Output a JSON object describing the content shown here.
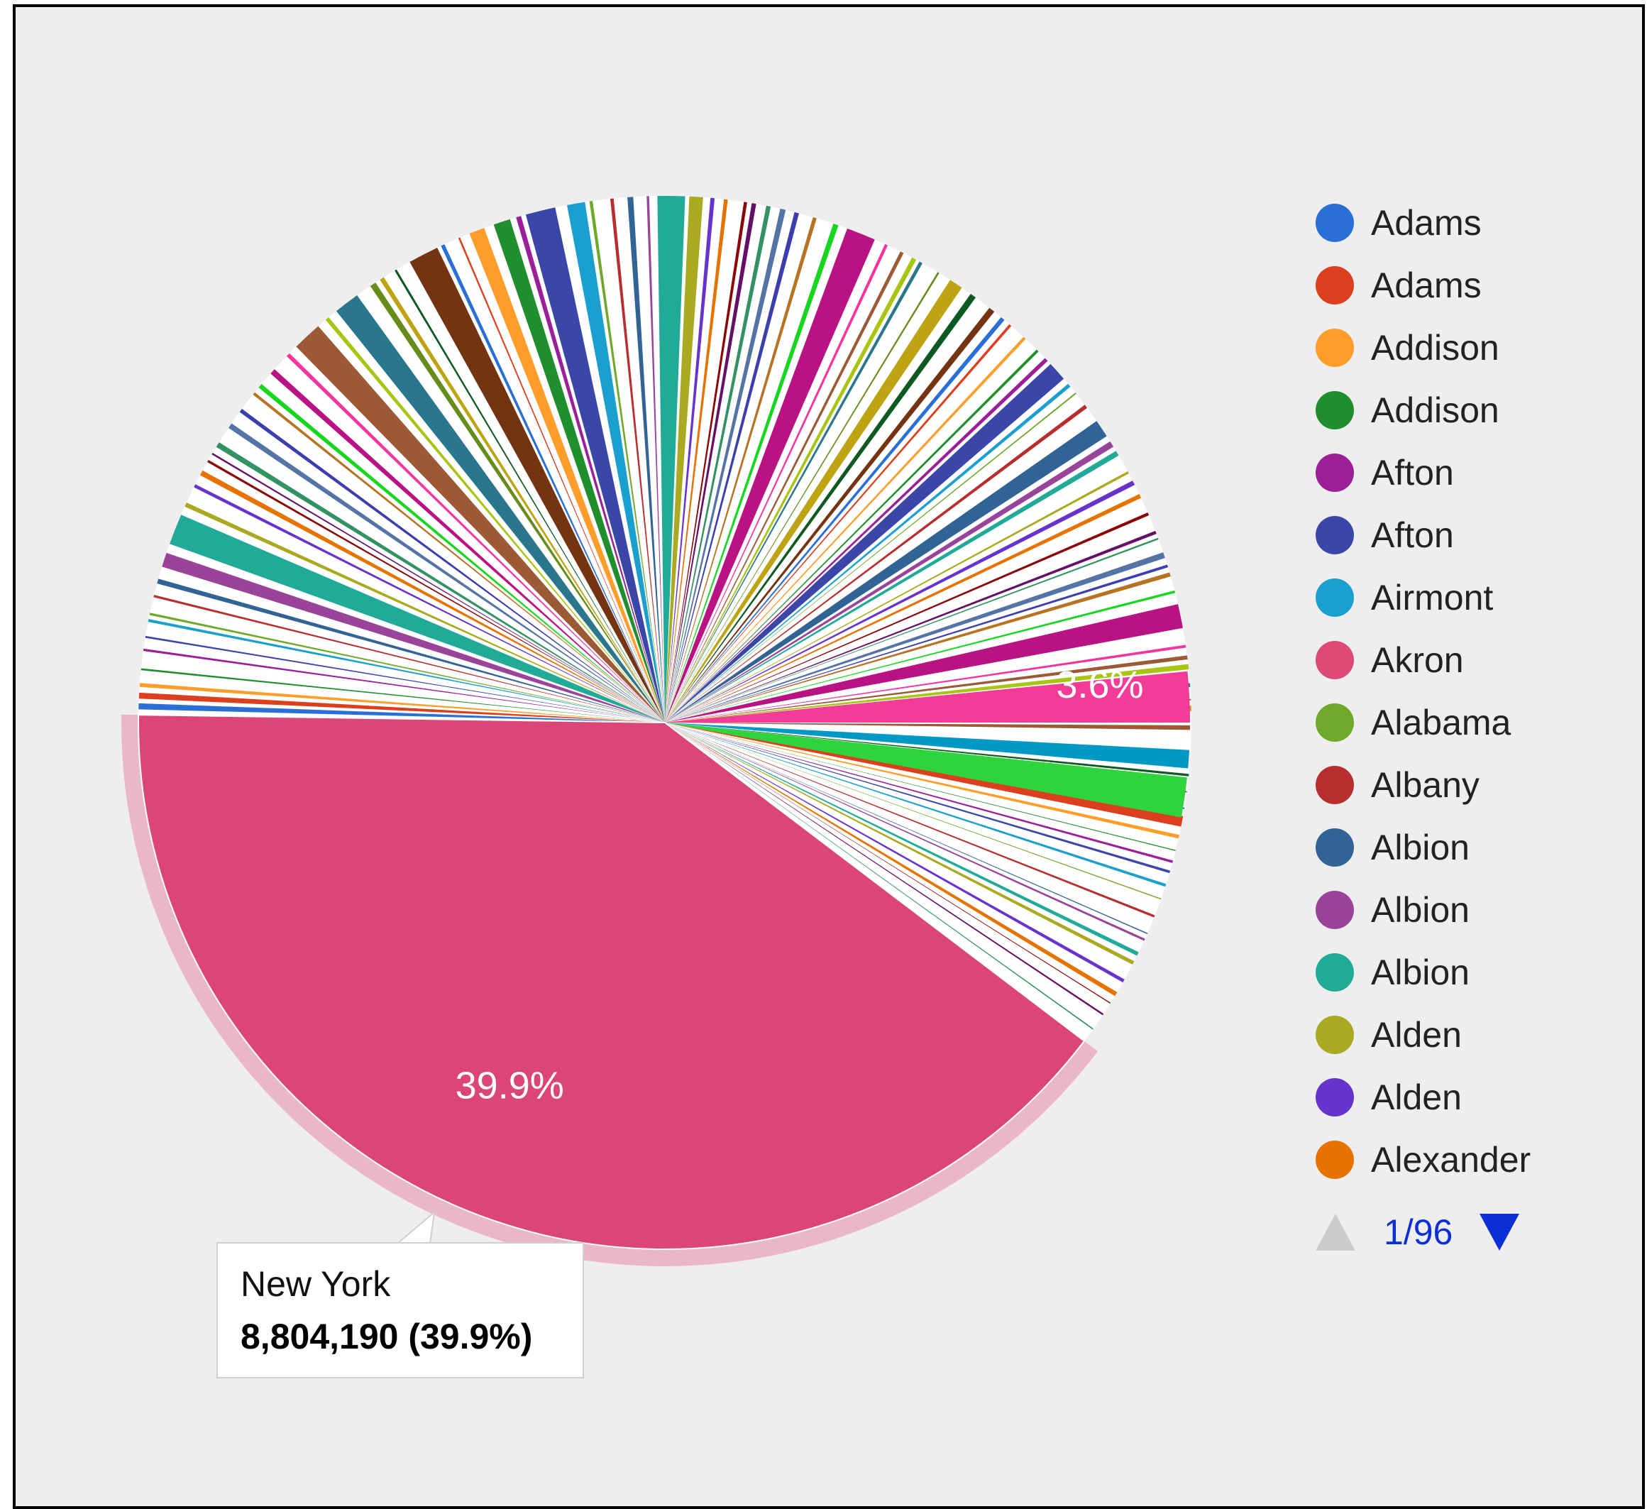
{
  "chart_data": {
    "type": "pie",
    "slices": [
      {
        "label": "New York",
        "value": 8804190,
        "percent": 39.9,
        "color": "#dc4677",
        "highlight": true
      },
      {
        "label": "",
        "percent": 3.6,
        "color": "#f23c98"
      }
    ],
    "slice_labels": [
      "39.9%",
      "3.6%"
    ],
    "tooltip": {
      "name": "New York",
      "value_text": "8,804,190 (39.9%)"
    }
  },
  "legend": {
    "items": [
      {
        "label": "Adams",
        "color": "#2a6fd6"
      },
      {
        "label": "Adams",
        "color": "#dc3f1e"
      },
      {
        "label": "Addison",
        "color": "#ff9d2a"
      },
      {
        "label": "Addison",
        "color": "#1f8f2e"
      },
      {
        "label": "Afton",
        "color": "#9a1f98"
      },
      {
        "label": "Afton",
        "color": "#3a47a8"
      },
      {
        "label": "Airmont",
        "color": "#1aa0ce"
      },
      {
        "label": "Akron",
        "color": "#de4a78"
      },
      {
        "label": "Alabama",
        "color": "#6fa82a"
      },
      {
        "label": "Albany",
        "color": "#b82e2e"
      },
      {
        "label": "Albion",
        "color": "#316395"
      },
      {
        "label": "Albion",
        "color": "#994499"
      },
      {
        "label": "Albion",
        "color": "#22aa99"
      },
      {
        "label": "Alden",
        "color": "#aaaa22"
      },
      {
        "label": "Alden",
        "color": "#6633cc"
      },
      {
        "label": "Alexander",
        "color": "#e67300"
      }
    ],
    "pager": "1/96"
  }
}
